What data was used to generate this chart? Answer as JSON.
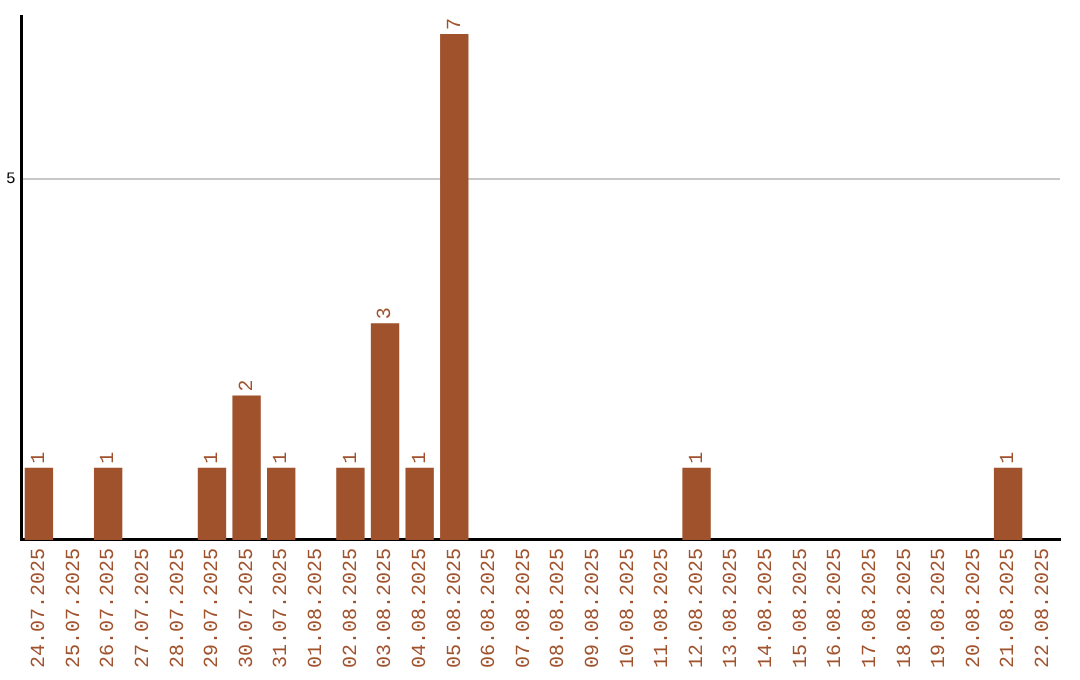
{
  "chart_data": {
    "type": "bar",
    "categories": [
      "24.07.2025",
      "25.07.2025",
      "26.07.2025",
      "27.07.2025",
      "28.07.2025",
      "29.07.2025",
      "30.07.2025",
      "31.07.2025",
      "01.08.2025",
      "02.08.2025",
      "03.08.2025",
      "04.08.2025",
      "05.08.2025",
      "06.08.2025",
      "07.08.2025",
      "08.08.2025",
      "09.08.2025",
      "10.08.2025",
      "11.08.2025",
      "12.08.2025",
      "13.08.2025",
      "14.08.2025",
      "15.08.2025",
      "16.08.2025",
      "17.08.2025",
      "18.08.2025",
      "19.08.2025",
      "20.08.2025",
      "21.08.2025",
      "22.08.2025"
    ],
    "values": [
      1,
      0,
      1,
      0,
      0,
      1,
      2,
      1,
      0,
      1,
      3,
      1,
      7,
      0,
      0,
      0,
      0,
      0,
      0,
      1,
      0,
      0,
      0,
      0,
      0,
      0,
      0,
      0,
      1,
      0
    ],
    "value_labels": [
      "1",
      null,
      "1",
      null,
      null,
      "1",
      "2",
      "1",
      null,
      "1",
      "3",
      "1",
      "7",
      null,
      null,
      null,
      null,
      null,
      null,
      "1",
      null,
      null,
      null,
      null,
      null,
      null,
      null,
      null,
      "1",
      null
    ],
    "color": "#a0522d",
    "ylim": [
      0,
      7.25
    ],
    "yticks": [
      5
    ],
    "grid": "y"
  }
}
